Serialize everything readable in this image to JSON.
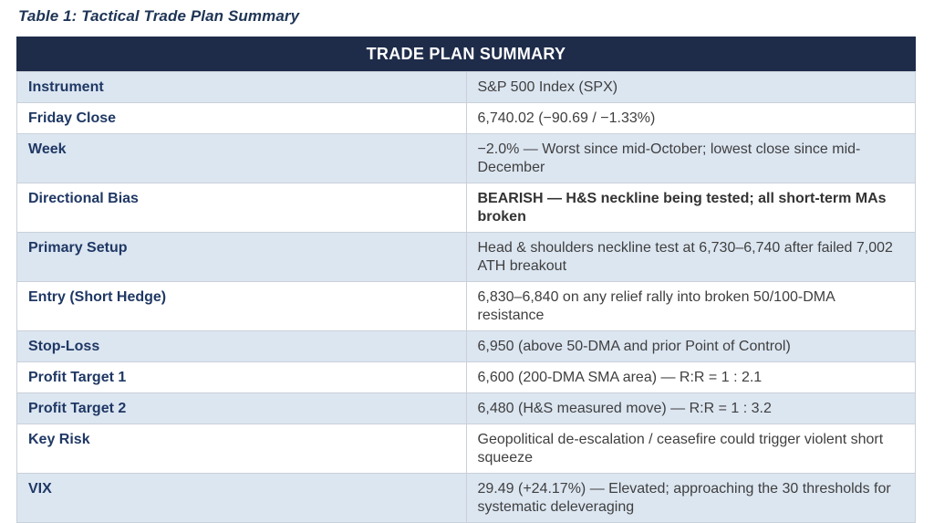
{
  "title": "Table 1: Tactical Trade Plan Summary",
  "table": {
    "header": "TRADE PLAN SUMMARY",
    "rows": [
      {
        "label": "Instrument",
        "value": "S&P 500 Index (SPX)"
      },
      {
        "label": "Friday Close",
        "value": "6,740.02 (−90.69 / −1.33%)"
      },
      {
        "label": "Week",
        "value": "−2.0% — Worst since mid-October; lowest close since mid-December"
      },
      {
        "label": "Directional Bias",
        "value": "BEARISH — H&S neckline being tested; all short-term MAs broken",
        "emphasis": "bold"
      },
      {
        "label": "Primary Setup",
        "value": "Head & shoulders neckline test at 6,730–6,740 after failed 7,002 ATH breakout"
      },
      {
        "label": "Entry (Short Hedge)",
        "value": "6,830–6,840 on any relief rally into broken 50/100-DMA resistance"
      },
      {
        "label": "Stop-Loss",
        "value": "6,950 (above 50-DMA and prior Point of Control)"
      },
      {
        "label": "Profit Target 1",
        "value": "6,600 (200-DMA SMA area) — R:R = 1 : 2.1"
      },
      {
        "label": "Profit Target 2",
        "value": "6,480 (H&S measured move) — R:R = 1 : 3.2"
      },
      {
        "label": "Key Risk",
        "value": "Geopolitical de-escalation / ceasefire could trigger violent short squeeze"
      },
      {
        "label": "VIX",
        "value": "29.49 (+24.17%) — Elevated; approaching the 30 thresholds for systematic deleveraging"
      }
    ]
  },
  "colors": {
    "header_bg": "#1e2c4a",
    "header_text": "#ffffff",
    "title_text": "#1f3556",
    "label_text": "#1f3864",
    "value_text": "#3f3f3f",
    "row_alt_bg": "#dce6f1",
    "row_bg": "#ffffff",
    "border": "#c9d0d9"
  }
}
